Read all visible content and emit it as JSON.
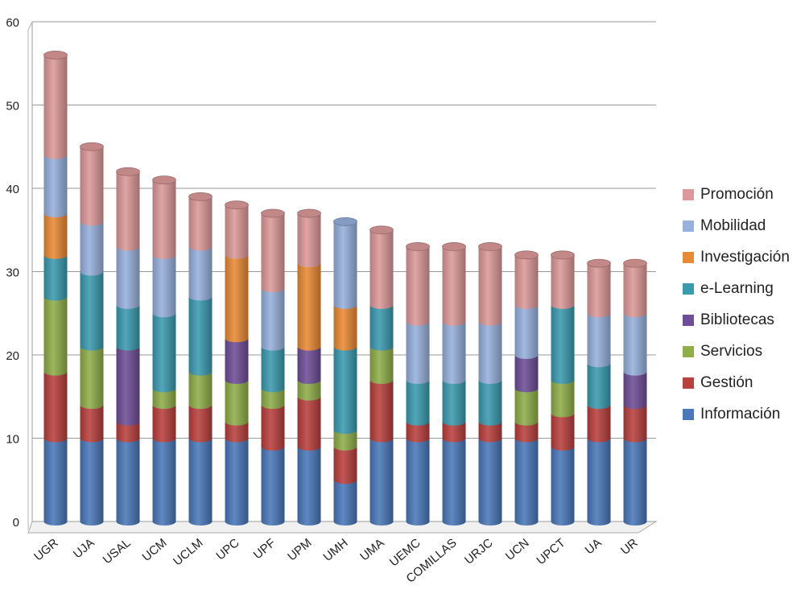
{
  "chart_data": {
    "type": "bar",
    "stacked": true,
    "title": "",
    "xlabel": "",
    "ylabel": "",
    "ylim": [
      0,
      60
    ],
    "yticks": [
      "0",
      "10",
      "20",
      "30",
      "40",
      "50",
      "60"
    ],
    "grid": true,
    "legend_position": "right",
    "categories": [
      "UGR",
      "UJA",
      "USAL",
      "UCM",
      "UCLM",
      "UPC",
      "UPF",
      "UPM",
      "UMH",
      "UMA",
      "UEMC",
      "COMILLAS",
      "URJC",
      "UCN",
      "UPCT",
      "UA",
      "UR"
    ],
    "series": [
      {
        "name": "Información",
        "color": "#4a78b8",
        "values": [
          10,
          10,
          10,
          10,
          10,
          10,
          9,
          9,
          5,
          10,
          10,
          10,
          10,
          10,
          9,
          10,
          10
        ]
      },
      {
        "name": "Gestión",
        "color": "#b8403e",
        "values": [
          8,
          4,
          2,
          4,
          4,
          2,
          5,
          6,
          4,
          7,
          2,
          2,
          2,
          2,
          4,
          4,
          4
        ]
      },
      {
        "name": "Servicios",
        "color": "#8fad4a",
        "values": [
          9,
          7,
          0,
          2,
          4,
          5,
          2,
          2,
          2,
          4,
          0,
          0,
          0,
          4,
          4,
          0,
          0
        ]
      },
      {
        "name": "Bibliotecas",
        "color": "#6e4e96",
        "values": [
          0,
          0,
          9,
          0,
          0,
          5,
          0,
          4,
          0,
          0,
          0,
          0,
          0,
          4,
          0,
          0,
          4
        ]
      },
      {
        "name": "e-Learning",
        "color": "#3a9aae",
        "values": [
          5,
          9,
          5,
          9,
          9,
          0,
          5,
          0,
          10,
          5,
          5,
          5,
          5,
          0,
          9,
          5,
          0
        ]
      },
      {
        "name": "Investigación",
        "color": "#e88a35",
        "values": [
          5,
          0,
          0,
          0,
          0,
          10,
          0,
          10,
          5,
          0,
          0,
          0,
          0,
          0,
          0,
          0,
          0
        ]
      },
      {
        "name": "Mobilidad",
        "color": "#97b0dc",
        "values": [
          7,
          6,
          7,
          7,
          6,
          0,
          7,
          0,
          10,
          0,
          7,
          7,
          7,
          6,
          0,
          6,
          7
        ]
      },
      {
        "name": "Promoción",
        "color": "#dc9999",
        "values": [
          12,
          9,
          9,
          9,
          6,
          6,
          9,
          6,
          0,
          9,
          9,
          9,
          9,
          6,
          6,
          6,
          6
        ]
      }
    ]
  }
}
